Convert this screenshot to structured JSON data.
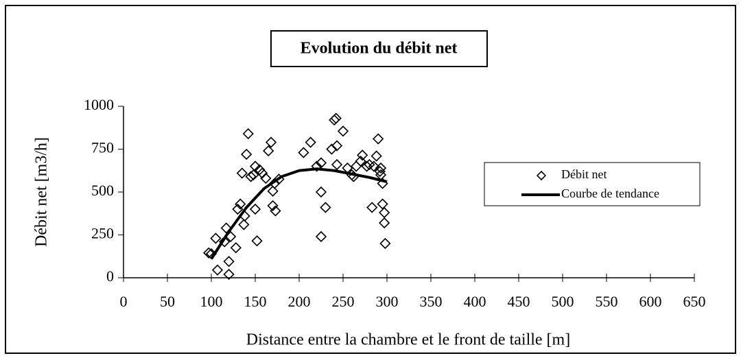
{
  "chart_data": {
    "type": "scatter",
    "title": "Evolution du débit net",
    "xlabel": "Distance entre la chambre et le front de taille [m]",
    "ylabel": "Débit net [m3/h]",
    "xlim": [
      0,
      650
    ],
    "ylim": [
      0,
      1000
    ],
    "xticks": [
      0,
      50,
      100,
      150,
      200,
      250,
      300,
      350,
      400,
      450,
      500,
      550,
      600,
      650
    ],
    "yticks": [
      0,
      250,
      500,
      750,
      1000
    ],
    "legend": "right",
    "series": [
      {
        "name": "Débit net",
        "type": "scatter",
        "color": "#000000",
        "x": [
          97,
          100,
          105,
          107,
          115,
          117,
          120,
          120,
          122,
          128,
          130,
          133,
          135,
          137,
          138,
          140,
          142,
          145,
          148,
          150,
          150,
          152,
          155,
          158,
          162,
          165,
          168,
          170,
          170,
          172,
          173,
          177,
          205,
          213,
          220,
          225,
          225,
          225,
          230,
          237,
          240,
          242,
          243,
          243,
          250,
          255,
          260,
          262,
          265,
          270,
          272,
          277,
          280,
          283,
          285,
          288,
          290,
          292,
          293,
          293,
          295,
          295,
          297,
          297,
          298
        ],
        "values": [
          145,
          140,
          230,
          45,
          210,
          290,
          95,
          20,
          240,
          175,
          400,
          430,
          610,
          310,
          360,
          720,
          840,
          590,
          600,
          650,
          400,
          215,
          630,
          610,
          580,
          740,
          790,
          505,
          420,
          550,
          390,
          575,
          730,
          790,
          650,
          670,
          500,
          240,
          410,
          750,
          920,
          930,
          660,
          770,
          855,
          640,
          600,
          590,
          650,
          680,
          715,
          650,
          660,
          410,
          650,
          710,
          810,
          620,
          600,
          640,
          430,
          550,
          380,
          320,
          200
        ]
      },
      {
        "name": "Courbe de tendance",
        "type": "line",
        "color": "#000000",
        "x": [
          100,
          120,
          140,
          160,
          180,
          200,
          220,
          240,
          260,
          280,
          300
        ],
        "values": [
          110,
          270,
          410,
          520,
          590,
          625,
          635,
          625,
          605,
          585,
          560
        ]
      }
    ]
  }
}
